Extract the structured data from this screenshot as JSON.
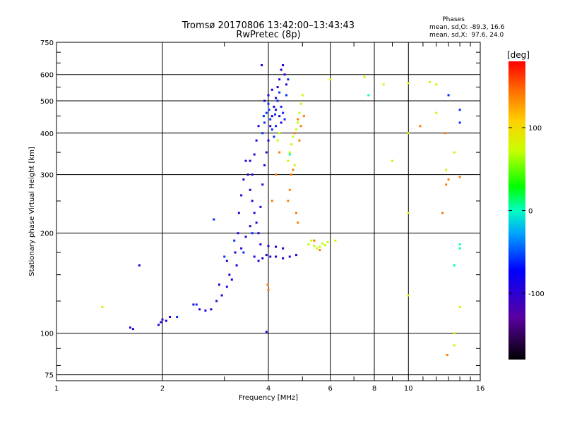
{
  "chart_data": {
    "type": "scatter",
    "title": "Tromsø 20170806 13:42:00–13:43:43",
    "subtitle": "RwPretec (8p)",
    "stats": {
      "heading": "Phases",
      "line_o": "mean, sd,O: -89.3, 16.6",
      "line_x": "mean, sd,X:  97.6, 24.0"
    },
    "xlabel": "Frequency [MHz]",
    "ylabel": "Stationary phase Virtual Height [km]",
    "x_scale": "log",
    "y_scale": "log",
    "xlim": [
      1,
      16
    ],
    "ylim": [
      72,
      750
    ],
    "x_ticks": [
      1,
      2,
      4,
      6,
      8,
      10,
      16
    ],
    "x_tick_labels": [
      "1",
      "2",
      "4",
      "6",
      "8",
      "10",
      "16"
    ],
    "y_ticks": [
      75,
      100,
      200,
      300,
      400,
      500,
      600,
      750
    ],
    "y_tick_labels": [
      "75",
      "100",
      "200",
      "300",
      "400",
      "500",
      "600",
      "750"
    ],
    "grid": true,
    "colorbar": {
      "label": "[deg]",
      "range": [
        -180,
        180
      ],
      "ticks": [
        100,
        0,
        -100
      ],
      "tick_labels": [
        "100",
        "0",
        "-100"
      ]
    },
    "series": [
      {
        "phase": -95,
        "points": [
          [
            1.62,
            104
          ],
          [
            1.65,
            103
          ],
          [
            1.95,
            106
          ],
          [
            1.98,
            108
          ],
          [
            2.0,
            110
          ],
          [
            2.05,
            109
          ],
          [
            2.1,
            112
          ],
          [
            2.45,
            122
          ],
          [
            2.55,
            118
          ],
          [
            2.65,
            117
          ],
          [
            2.75,
            118
          ],
          [
            2.85,
            125
          ],
          [
            2.95,
            130
          ],
          [
            3.05,
            138
          ],
          [
            3.15,
            145
          ],
          [
            3.25,
            160
          ],
          [
            3.35,
            180
          ],
          [
            3.45,
            195
          ],
          [
            3.55,
            210
          ],
          [
            3.65,
            170
          ],
          [
            3.75,
            165
          ],
          [
            3.85,
            168
          ],
          [
            3.95,
            172
          ],
          [
            4.05,
            170
          ],
          [
            4.2,
            170
          ],
          [
            4.4,
            168
          ],
          [
            4.6,
            170
          ],
          [
            4.8,
            172
          ],
          [
            3.8,
            185
          ],
          [
            4.0,
            183
          ],
          [
            4.2,
            182
          ],
          [
            4.4,
            180
          ],
          [
            3.3,
            230
          ],
          [
            3.35,
            260
          ],
          [
            3.4,
            290
          ],
          [
            3.45,
            330
          ],
          [
            3.5,
            300
          ],
          [
            3.55,
            270
          ],
          [
            3.6,
            250
          ],
          [
            3.65,
            230
          ],
          [
            3.7,
            215
          ],
          [
            3.75,
            200
          ],
          [
            3.8,
            240
          ],
          [
            3.85,
            280
          ],
          [
            3.9,
            320
          ],
          [
            3.95,
            350
          ],
          [
            4.0,
            380
          ],
          [
            4.05,
            420
          ],
          [
            4.1,
            450
          ],
          [
            4.15,
            480
          ],
          [
            4.2,
            510
          ],
          [
            4.25,
            550
          ],
          [
            4.3,
            580
          ],
          [
            4.35,
            620
          ],
          [
            4.4,
            640
          ],
          [
            4.45,
            600
          ],
          [
            4.5,
            560
          ],
          [
            3.65,
            345
          ],
          [
            3.7,
            380
          ],
          [
            3.75,
            420
          ],
          [
            3.6,
            300
          ],
          [
            3.55,
            330
          ],
          [
            3.28,
            200
          ],
          [
            3.22,
            175
          ],
          [
            3.1,
            150
          ],
          [
            3.05,
            165
          ],
          [
            2.9,
            140
          ],
          [
            3.9,
            500
          ],
          [
            4.0,
            520
          ],
          [
            4.1,
            540
          ],
          [
            4.2,
            470
          ],
          [
            4.3,
            450
          ],
          [
            4.35,
            430
          ],
          [
            3.95,
            101
          ],
          [
            1.72,
            160
          ],
          [
            3.83,
            640
          ]
        ]
      },
      {
        "phase": -60,
        "points": [
          [
            2.2,
            112
          ],
          [
            2.5,
            122
          ],
          [
            2.8,
            220
          ],
          [
            3.0,
            170
          ],
          [
            3.2,
            190
          ],
          [
            3.4,
            175
          ],
          [
            3.6,
            200
          ],
          [
            3.85,
            400
          ],
          [
            3.9,
            430
          ],
          [
            3.95,
            460
          ],
          [
            4.0,
            490
          ],
          [
            4.05,
            440
          ],
          [
            4.1,
            410
          ],
          [
            4.15,
            390
          ],
          [
            4.2,
            420
          ],
          [
            4.25,
            500
          ],
          [
            4.3,
            530
          ],
          [
            4.35,
            480
          ],
          [
            4.4,
            460
          ],
          [
            4.45,
            440
          ],
          [
            4.5,
            520
          ],
          [
            4.55,
            580
          ],
          [
            3.88,
            450
          ],
          [
            4.02,
            470
          ],
          [
            4.18,
            455
          ],
          [
            13.0,
            520
          ],
          [
            14.0,
            470
          ],
          [
            14.0,
            430
          ]
        ]
      },
      {
        "phase": 0,
        "points": [
          [
            4.6,
            345
          ],
          [
            13.5,
            160
          ],
          [
            14.0,
            185
          ],
          [
            14.0,
            180
          ],
          [
            7.7,
            520
          ]
        ]
      },
      {
        "phase": 70,
        "points": [
          [
            1.35,
            120
          ],
          [
            4.55,
            330
          ],
          [
            4.6,
            350
          ],
          [
            4.65,
            370
          ],
          [
            4.7,
            390
          ],
          [
            4.8,
            410
          ],
          [
            4.85,
            430
          ],
          [
            4.9,
            460
          ],
          [
            4.95,
            490
          ],
          [
            5.0,
            520
          ],
          [
            4.75,
            320
          ],
          [
            5.2,
            185
          ],
          [
            5.3,
            190
          ],
          [
            5.4,
            183
          ],
          [
            5.5,
            180
          ],
          [
            5.6,
            182
          ],
          [
            5.7,
            186
          ],
          [
            5.8,
            184
          ],
          [
            5.9,
            188
          ],
          [
            6.2,
            190
          ],
          [
            6.0,
            580
          ],
          [
            7.5,
            590
          ],
          [
            8.5,
            560
          ],
          [
            10.0,
            565
          ],
          [
            11.5,
            570
          ],
          [
            12.0,
            560
          ],
          [
            12.8,
            310
          ],
          [
            13.5,
            350
          ],
          [
            10.0,
            400
          ],
          [
            10.0,
            230
          ],
          [
            9.0,
            330
          ],
          [
            12.0,
            460
          ],
          [
            14.0,
            120
          ],
          [
            13.5,
            92
          ],
          [
            13.5,
            100
          ],
          [
            4.3,
            400
          ],
          [
            4.25,
            380
          ],
          [
            10.0,
            130
          ]
        ]
      },
      {
        "phase": 140,
        "points": [
          [
            3.98,
            140
          ],
          [
            4.0,
            135
          ],
          [
            4.55,
            250
          ],
          [
            4.6,
            270
          ],
          [
            4.7,
            310
          ],
          [
            4.65,
            300
          ],
          [
            4.75,
            400
          ],
          [
            4.85,
            440
          ],
          [
            4.95,
            420
          ],
          [
            5.05,
            450
          ],
          [
            4.9,
            380
          ],
          [
            4.8,
            230
          ],
          [
            4.85,
            215
          ],
          [
            5.4,
            190
          ],
          [
            5.6,
            178
          ],
          [
            10.8,
            420
          ],
          [
            12.7,
            400
          ],
          [
            12.5,
            230
          ],
          [
            12.8,
            280
          ],
          [
            13.0,
            290
          ],
          [
            14.0,
            295
          ],
          [
            12.9,
            86
          ],
          [
            4.3,
            350
          ],
          [
            4.2,
            300
          ],
          [
            4.1,
            250
          ]
        ]
      }
    ]
  }
}
